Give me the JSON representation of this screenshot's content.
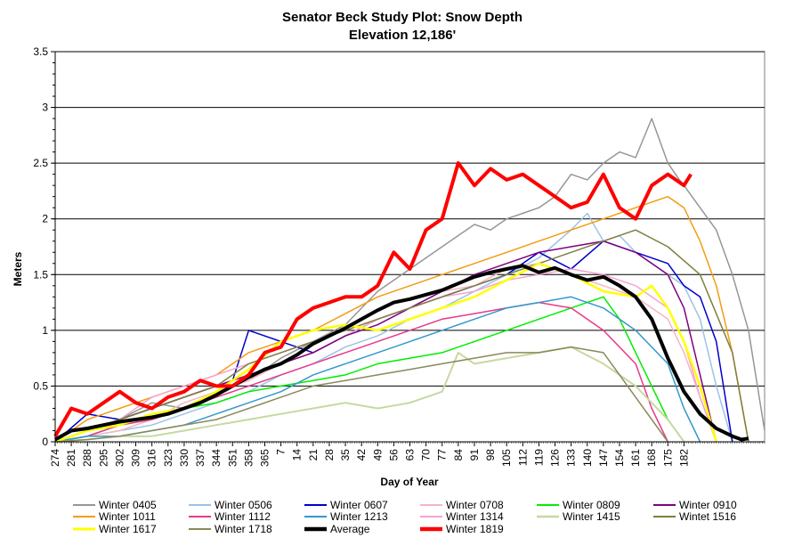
{
  "chart_data": {
    "type": "line",
    "title": "Senator Beck Study Plot: Snow Depth",
    "subtitle": "Elevation 12,186'",
    "xlabel": "Day of Year",
    "ylabel": "Meters",
    "ylim": [
      0,
      3.5
    ],
    "yticks": [
      "0",
      "0.5",
      "1",
      "1.5",
      "2",
      "2.5",
      "3",
      "3.5"
    ],
    "xticks": [
      "274",
      "281",
      "288",
      "295",
      "302",
      "309",
      "316",
      "323",
      "330",
      "337",
      "344",
      "351",
      "358",
      "365",
      "7",
      "14",
      "21",
      "28",
      "35",
      "42",
      "49",
      "56",
      "63",
      "70",
      "77",
      "84",
      "91",
      "98",
      "105",
      "112",
      "119",
      "126",
      "133",
      "140",
      "147",
      "154",
      "161",
      "168",
      "175",
      "182"
    ],
    "grid": "horizontal",
    "legend_position": "bottom",
    "series": [
      {
        "name": "Winter 0405",
        "color": "#969696",
        "width": 1.5,
        "x": [
          0,
          14,
          28,
          42,
          56,
          70,
          84,
          98,
          112,
          126,
          140,
          154,
          161,
          168,
          175,
          182,
          189,
          196,
          203,
          210,
          217,
          224,
          231,
          238,
          245,
          252,
          259,
          266,
          271,
          273,
          280,
          287,
          294,
          301,
          308
        ],
        "y": [
          0,
          0.1,
          0.2,
          0.35,
          0.3,
          0.45,
          0.55,
          0.75,
          0.9,
          1.05,
          1.35,
          1.55,
          1.65,
          1.75,
          1.85,
          1.95,
          1.9,
          2.0,
          2.05,
          2.1,
          2.2,
          2.4,
          2.35,
          2.5,
          2.6,
          2.55,
          2.9,
          2.5,
          2.35,
          2.3,
          2.1,
          1.9,
          1.5,
          1.0,
          0.1
        ]
      },
      {
        "name": "Winter 0506",
        "color": "#9dc3e6",
        "width": 1.5,
        "x": [
          0,
          14,
          28,
          42,
          56,
          70,
          84,
          98,
          112,
          126,
          140,
          154,
          168,
          182,
          196,
          210,
          224,
          231,
          238,
          245,
          252,
          259,
          266,
          273,
          280,
          287,
          294
        ],
        "y": [
          0,
          0.05,
          0.1,
          0.15,
          0.25,
          0.35,
          0.45,
          0.6,
          0.7,
          0.85,
          0.95,
          1.1,
          1.2,
          1.35,
          1.5,
          1.65,
          1.9,
          2.05,
          1.8,
          1.85,
          1.7,
          1.6,
          1.5,
          1.4,
          1.1,
          0.5,
          0
        ]
      },
      {
        "name": "Winter 0607",
        "color": "#0000cc",
        "width": 1.5,
        "x": [
          0,
          14,
          28,
          42,
          56,
          70,
          77,
          84,
          98,
          112,
          126,
          140,
          154,
          168,
          182,
          196,
          210,
          224,
          238,
          252,
          266,
          273,
          280,
          287,
          294
        ],
        "y": [
          0,
          0.25,
          0.2,
          0.3,
          0.4,
          0.5,
          0.55,
          1.0,
          0.9,
          0.8,
          0.95,
          1.1,
          1.2,
          1.3,
          1.4,
          1.5,
          1.7,
          1.55,
          1.8,
          1.7,
          1.6,
          1.4,
          1.3,
          0.9,
          0
        ]
      },
      {
        "name": "Winter 0708",
        "color": "#f4b6c2",
        "width": 1.5,
        "x": [
          0,
          14,
          28,
          42,
          56,
          70,
          84,
          98,
          112,
          126,
          140,
          154,
          168,
          182,
          196,
          210,
          224,
          238,
          252,
          266,
          273,
          280,
          287
        ],
        "y": [
          0,
          0.05,
          0.1,
          0.2,
          0.35,
          0.45,
          0.55,
          0.7,
          0.8,
          0.95,
          1.1,
          1.2,
          1.35,
          1.4,
          1.55,
          1.6,
          1.5,
          1.4,
          1.3,
          1.1,
          0.8,
          0.4,
          0
        ]
      },
      {
        "name": "Winter 0809",
        "color": "#00ee00",
        "width": 1.5,
        "x": [
          0,
          14,
          28,
          42,
          56,
          70,
          84,
          98,
          112,
          126,
          140,
          154,
          168,
          182,
          196,
          210,
          224,
          238,
          245,
          252,
          259,
          266,
          273
        ],
        "y": [
          0,
          0.05,
          0.15,
          0.2,
          0.3,
          0.35,
          0.45,
          0.5,
          0.55,
          0.6,
          0.7,
          0.75,
          0.8,
          0.9,
          1.0,
          1.1,
          1.2,
          1.3,
          1.1,
          0.8,
          0.5,
          0.2,
          0
        ]
      },
      {
        "name": "Winter 0910",
        "color": "#800080",
        "width": 1.5,
        "x": [
          0,
          14,
          28,
          42,
          56,
          70,
          84,
          98,
          112,
          126,
          140,
          154,
          168,
          182,
          196,
          210,
          224,
          238,
          252,
          266,
          273,
          280,
          287
        ],
        "y": [
          0,
          0.1,
          0.2,
          0.3,
          0.4,
          0.5,
          0.6,
          0.7,
          0.8,
          0.95,
          1.05,
          1.2,
          1.35,
          1.5,
          1.6,
          1.7,
          1.75,
          1.8,
          1.7,
          1.5,
          1.2,
          0.6,
          0
        ]
      },
      {
        "name": "Winter 1011",
        "color": "#f39c12",
        "width": 1.5,
        "x": [
          0,
          14,
          28,
          42,
          56,
          70,
          84,
          98,
          112,
          126,
          140,
          154,
          168,
          182,
          196,
          210,
          224,
          238,
          252,
          266,
          273,
          280,
          287,
          294,
          301
        ],
        "y": [
          0,
          0.2,
          0.3,
          0.4,
          0.5,
          0.6,
          0.8,
          0.9,
          1.0,
          1.15,
          1.3,
          1.4,
          1.5,
          1.6,
          1.7,
          1.8,
          1.9,
          2.0,
          2.1,
          2.2,
          2.1,
          1.8,
          1.4,
          0.8,
          0
        ]
      },
      {
        "name": "Winter 1112",
        "color": "#e8398a",
        "width": 1.5,
        "x": [
          0,
          14,
          28,
          42,
          56,
          70,
          84,
          98,
          112,
          126,
          140,
          154,
          168,
          182,
          196,
          210,
          224,
          238,
          252,
          259,
          266
        ],
        "y": [
          0,
          0.05,
          0.15,
          0.2,
          0.3,
          0.4,
          0.5,
          0.6,
          0.7,
          0.8,
          0.9,
          1.0,
          1.1,
          1.15,
          1.2,
          1.25,
          1.2,
          1.0,
          0.7,
          0.3,
          0
        ]
      },
      {
        "name": "Winter 1213",
        "color": "#3399cc",
        "width": 1.5,
        "x": [
          0,
          14,
          28,
          42,
          56,
          70,
          84,
          98,
          112,
          126,
          140,
          154,
          168,
          182,
          196,
          210,
          224,
          238,
          252,
          266,
          273,
          280
        ],
        "y": [
          0,
          0.05,
          0.05,
          0.1,
          0.15,
          0.25,
          0.35,
          0.45,
          0.6,
          0.7,
          0.8,
          0.9,
          1.0,
          1.1,
          1.2,
          1.25,
          1.3,
          1.2,
          1.0,
          0.7,
          0.3,
          0
        ]
      },
      {
        "name": "Winter 1314",
        "color": "#f5a3d3",
        "width": 1.5,
        "x": [
          0,
          14,
          28,
          42,
          56,
          70,
          84,
          98,
          112,
          126,
          140,
          154,
          168,
          182,
          196,
          210,
          224,
          238,
          252,
          266,
          273,
          280,
          287
        ],
        "y": [
          0,
          0.1,
          0.2,
          0.4,
          0.5,
          0.6,
          0.7,
          0.8,
          0.9,
          1.0,
          1.1,
          1.2,
          1.3,
          1.35,
          1.45,
          1.5,
          1.55,
          1.5,
          1.4,
          1.2,
          0.9,
          0.4,
          0
        ]
      },
      {
        "name": "Winter 1415",
        "color": "#c6d9a0",
        "width": 2,
        "x": [
          0,
          14,
          28,
          42,
          56,
          70,
          84,
          98,
          112,
          126,
          140,
          154,
          168,
          175,
          182,
          196,
          210,
          224,
          238,
          252,
          266,
          273
        ],
        "y": [
          0,
          0.02,
          0.05,
          0.05,
          0.1,
          0.15,
          0.2,
          0.25,
          0.3,
          0.35,
          0.3,
          0.35,
          0.45,
          0.8,
          0.7,
          0.75,
          0.8,
          0.85,
          0.7,
          0.5,
          0.2,
          0
        ]
      },
      {
        "name": "Wintet 1516",
        "color": "#7f7f3f",
        "width": 1.5,
        "x": [
          0,
          14,
          28,
          42,
          56,
          70,
          84,
          98,
          112,
          126,
          140,
          154,
          168,
          182,
          196,
          210,
          224,
          238,
          252,
          266,
          280,
          294,
          301
        ],
        "y": [
          0,
          0.1,
          0.2,
          0.3,
          0.4,
          0.5,
          0.7,
          0.8,
          0.9,
          1.0,
          1.1,
          1.2,
          1.3,
          1.4,
          1.5,
          1.6,
          1.7,
          1.8,
          1.9,
          1.75,
          1.5,
          0.8,
          0
        ]
      },
      {
        "name": "Winter 1617",
        "color": "#ffff00",
        "width": 2.5,
        "x": [
          0,
          14,
          28,
          42,
          56,
          70,
          84,
          98,
          112,
          126,
          140,
          154,
          168,
          182,
          196,
          210,
          224,
          238,
          252,
          259,
          266,
          273,
          280,
          287
        ],
        "y": [
          0,
          0.1,
          0.15,
          0.25,
          0.3,
          0.45,
          0.65,
          0.9,
          1.0,
          1.05,
          1.0,
          1.1,
          1.2,
          1.3,
          1.45,
          1.6,
          1.5,
          1.35,
          1.3,
          1.4,
          1.2,
          0.9,
          0.5,
          0
        ]
      },
      {
        "name": "Winter 1718",
        "color": "#8a8a5a",
        "width": 1.5,
        "x": [
          0,
          14,
          28,
          42,
          56,
          70,
          84,
          98,
          112,
          126,
          140,
          154,
          168,
          182,
          196,
          210,
          224,
          238,
          245,
          252,
          259,
          266
        ],
        "y": [
          0,
          0.02,
          0.05,
          0.1,
          0.15,
          0.2,
          0.3,
          0.4,
          0.5,
          0.55,
          0.6,
          0.65,
          0.7,
          0.75,
          0.8,
          0.8,
          0.85,
          0.8,
          0.6,
          0.4,
          0.2,
          0
        ]
      },
      {
        "name": "Average",
        "color": "#000000",
        "width": 4,
        "x": [
          0,
          7,
          14,
          21,
          28,
          35,
          42,
          49,
          56,
          63,
          70,
          77,
          84,
          91,
          98,
          105,
          112,
          119,
          126,
          133,
          140,
          147,
          154,
          161,
          168,
          175,
          182,
          189,
          196,
          203,
          210,
          217,
          224,
          231,
          238,
          245,
          252,
          259,
          266,
          273,
          280,
          287,
          294,
          298,
          301
        ],
        "y": [
          0.02,
          0.1,
          0.12,
          0.15,
          0.18,
          0.2,
          0.22,
          0.25,
          0.3,
          0.35,
          0.42,
          0.5,
          0.58,
          0.65,
          0.7,
          0.78,
          0.88,
          0.95,
          1.02,
          1.1,
          1.18,
          1.25,
          1.28,
          1.32,
          1.36,
          1.42,
          1.48,
          1.52,
          1.55,
          1.58,
          1.52,
          1.56,
          1.5,
          1.45,
          1.48,
          1.4,
          1.3,
          1.1,
          0.75,
          0.45,
          0.25,
          0.12,
          0.05,
          0.02,
          0.03
        ]
      },
      {
        "name": "Winter 1819",
        "color": "#ff0000",
        "width": 4,
        "x": [
          0,
          7,
          14,
          21,
          28,
          35,
          42,
          49,
          56,
          63,
          70,
          77,
          84,
          91,
          98,
          105,
          112,
          119,
          126,
          133,
          140,
          147,
          154,
          161,
          168,
          175,
          182,
          189,
          196,
          203,
          210,
          217,
          224,
          231,
          238,
          245,
          252,
          259,
          266,
          273,
          276
        ],
        "y": [
          0.05,
          0.3,
          0.25,
          0.35,
          0.45,
          0.35,
          0.3,
          0.4,
          0.45,
          0.55,
          0.5,
          0.5,
          0.6,
          0.8,
          0.85,
          1.1,
          1.2,
          1.25,
          1.3,
          1.3,
          1.4,
          1.7,
          1.55,
          1.9,
          2.0,
          2.5,
          2.3,
          2.45,
          2.35,
          2.4,
          2.3,
          2.2,
          2.1,
          2.15,
          2.4,
          2.1,
          2.0,
          2.3,
          2.4,
          2.3,
          2.4
        ]
      }
    ]
  }
}
